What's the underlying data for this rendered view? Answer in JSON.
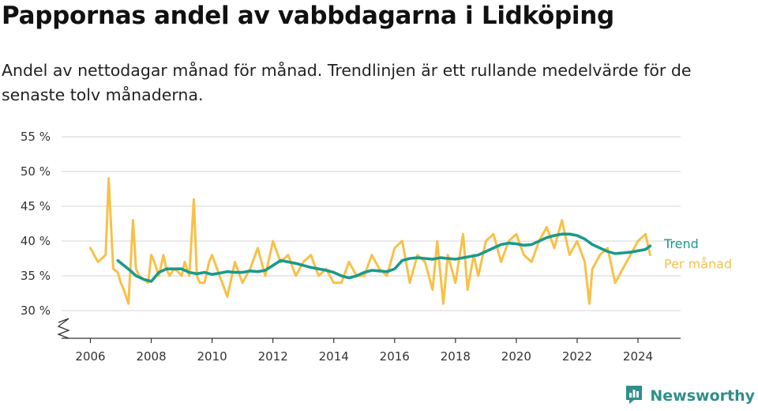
{
  "title": "Pappornas andel av vabbdagarna i Lidköping",
  "subtitle": "Andel av nettodagar månad för månad. Trendlinjen är ett rullande medelvärde för de senaste tolv månaderna.",
  "brand": {
    "name": "Newsworthy",
    "icon": "bar-chart-logo-icon"
  },
  "colors": {
    "monthly": "#f7c148",
    "trend": "#1a9a8a",
    "grid": "#dddddd",
    "brand": "#2f8f8a"
  },
  "chart_data": {
    "type": "line",
    "title": "Pappornas andel av vabbdagarna i Lidköping",
    "subtitle": "Andel av nettodagar månad för månad. Trendlinjen är ett rullande medelvärde för de senaste tolv månaderna.",
    "xlabel": "",
    "ylabel": "",
    "xlim": [
      2005.5,
      2025.3
    ],
    "ylim": [
      26,
      56
    ],
    "y_axis_break": true,
    "grid": "horizontal",
    "legend": "right, at line ends",
    "x_ticks": [
      "2006",
      "2008",
      "2010",
      "2012",
      "2014",
      "2016",
      "2018",
      "2020",
      "2022",
      "2024"
    ],
    "y_ticks": [
      {
        "value": 30,
        "label": "30 %"
      },
      {
        "value": 35,
        "label": "35 %"
      },
      {
        "value": 40,
        "label": "40 %"
      },
      {
        "value": 45,
        "label": "45 %"
      },
      {
        "value": 50,
        "label": "50 %"
      },
      {
        "value": 55,
        "label": "55 %"
      }
    ],
    "series": [
      {
        "name": "Per månad",
        "key": "monthly",
        "x": [
          2006.0,
          2006.25,
          2006.5,
          2006.6,
          2006.75,
          2006.9,
          2007.0,
          2007.1,
          2007.25,
          2007.4,
          2007.5,
          2007.6,
          2007.75,
          2007.9,
          2008.0,
          2008.1,
          2008.25,
          2008.4,
          2008.5,
          2008.6,
          2008.75,
          2008.9,
          2009.0,
          2009.1,
          2009.25,
          2009.4,
          2009.5,
          2009.6,
          2009.75,
          2009.9,
          2010.0,
          2010.25,
          2010.5,
          2010.75,
          2011.0,
          2011.25,
          2011.5,
          2011.75,
          2012.0,
          2012.25,
          2012.5,
          2012.75,
          2013.0,
          2013.25,
          2013.5,
          2013.75,
          2014.0,
          2014.25,
          2014.5,
          2014.75,
          2015.0,
          2015.25,
          2015.5,
          2015.75,
          2016.0,
          2016.25,
          2016.5,
          2016.75,
          2017.0,
          2017.25,
          2017.4,
          2017.6,
          2017.75,
          2018.0,
          2018.25,
          2018.4,
          2018.6,
          2018.75,
          2019.0,
          2019.25,
          2019.5,
          2019.75,
          2020.0,
          2020.25,
          2020.5,
          2020.75,
          2021.0,
          2021.25,
          2021.5,
          2021.75,
          2022.0,
          2022.25,
          2022.4,
          2022.5,
          2022.75,
          2023.0,
          2023.25,
          2023.5,
          2023.75,
          2024.0,
          2024.25,
          2024.4
        ],
        "y": [
          39.0,
          37.0,
          38.0,
          49.0,
          36.0,
          35.5,
          34.0,
          33.0,
          31.0,
          43.0,
          36.0,
          35.0,
          34.5,
          34.0,
          38.0,
          37.0,
          35.0,
          38.0,
          36.0,
          35.0,
          36.0,
          35.5,
          35.0,
          37.0,
          35.0,
          46.0,
          35.0,
          34.0,
          34.0,
          37.0,
          38.0,
          35.0,
          32.0,
          37.0,
          34.0,
          36.0,
          39.0,
          35.0,
          40.0,
          37.0,
          38.0,
          35.0,
          37.0,
          38.0,
          35.0,
          36.0,
          34.0,
          34.0,
          37.0,
          35.0,
          35.0,
          38.0,
          36.0,
          35.0,
          39.0,
          40.0,
          34.0,
          38.0,
          37.0,
          33.0,
          40.0,
          31.0,
          38.0,
          34.0,
          41.0,
          33.0,
          38.0,
          35.0,
          40.0,
          41.0,
          37.0,
          40.0,
          41.0,
          38.0,
          37.0,
          40.0,
          42.0,
          39.0,
          43.0,
          38.0,
          40.0,
          37.0,
          31.0,
          36.0,
          38.0,
          39.0,
          34.0,
          36.0,
          38.0,
          40.0,
          41.0,
          38.0
        ]
      },
      {
        "name": "Trend",
        "key": "trend",
        "x": [
          2006.9,
          2007.1,
          2007.3,
          2007.5,
          2007.75,
          2008.0,
          2008.25,
          2008.5,
          2008.75,
          2009.0,
          2009.25,
          2009.5,
          2009.75,
          2010.0,
          2010.25,
          2010.5,
          2010.75,
          2011.0,
          2011.25,
          2011.5,
          2011.75,
          2012.0,
          2012.25,
          2012.5,
          2012.75,
          2013.0,
          2013.25,
          2013.5,
          2013.75,
          2014.0,
          2014.25,
          2014.5,
          2014.75,
          2015.0,
          2015.25,
          2015.5,
          2015.75,
          2016.0,
          2016.25,
          2016.5,
          2016.75,
          2017.0,
          2017.25,
          2017.5,
          2017.75,
          2018.0,
          2018.25,
          2018.5,
          2018.75,
          2019.0,
          2019.25,
          2019.5,
          2019.75,
          2020.0,
          2020.25,
          2020.5,
          2020.75,
          2021.0,
          2021.25,
          2021.5,
          2021.75,
          2022.0,
          2022.25,
          2022.5,
          2022.75,
          2023.0,
          2023.25,
          2023.5,
          2023.75,
          2024.0,
          2024.25,
          2024.4
        ],
        "y": [
          37.2,
          36.5,
          35.8,
          35.0,
          34.5,
          34.2,
          35.5,
          36.0,
          36.0,
          36.0,
          35.5,
          35.3,
          35.5,
          35.2,
          35.4,
          35.6,
          35.5,
          35.5,
          35.7,
          35.6,
          35.8,
          36.5,
          37.2,
          37.0,
          36.8,
          36.5,
          36.2,
          36.0,
          35.8,
          35.5,
          35.0,
          34.7,
          35.0,
          35.5,
          35.8,
          35.7,
          35.6,
          36.0,
          37.2,
          37.5,
          37.6,
          37.5,
          37.4,
          37.6,
          37.5,
          37.4,
          37.6,
          37.8,
          38.0,
          38.5,
          39.0,
          39.5,
          39.7,
          39.6,
          39.4,
          39.5,
          40.0,
          40.5,
          40.8,
          41.0,
          41.0,
          40.8,
          40.3,
          39.5,
          39.0,
          38.5,
          38.2,
          38.3,
          38.4,
          38.6,
          38.8,
          39.3
        ]
      }
    ]
  }
}
